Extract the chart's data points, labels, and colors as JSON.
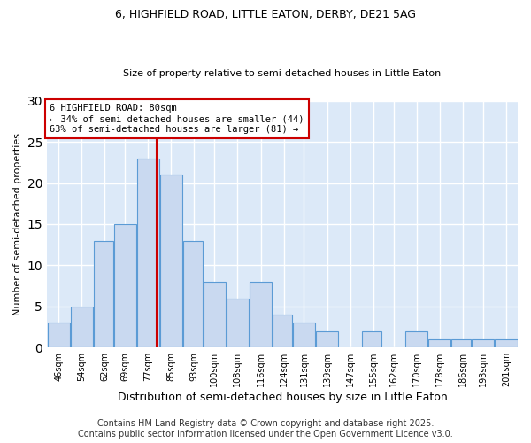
{
  "title1": "6, HIGHFIELD ROAD, LITTLE EATON, DERBY, DE21 5AG",
  "title2": "Size of property relative to semi-detached houses in Little Eaton",
  "xlabel": "Distribution of semi-detached houses by size in Little Eaton",
  "ylabel": "Number of semi-detached properties",
  "bin_edges": [
    42,
    50,
    58,
    65,
    73,
    81,
    89,
    96,
    104,
    112,
    120,
    127,
    135,
    143,
    151,
    158,
    166,
    174,
    182,
    189,
    197,
    205
  ],
  "bar_heights": [
    3,
    5,
    13,
    15,
    23,
    21,
    13,
    8,
    6,
    8,
    4,
    3,
    2,
    0,
    2,
    0,
    2,
    1,
    1,
    1,
    1
  ],
  "tick_labels": [
    "46sqm",
    "54sqm",
    "62sqm",
    "69sqm",
    "77sqm",
    "85sqm",
    "93sqm",
    "100sqm",
    "108sqm",
    "116sqm",
    "124sqm",
    "131sqm",
    "139sqm",
    "147sqm",
    "155sqm",
    "162sqm",
    "170sqm",
    "178sqm",
    "186sqm",
    "193sqm",
    "201sqm"
  ],
  "tick_positions": [
    46,
    54,
    62,
    69,
    77,
    85,
    93,
    100,
    108,
    116,
    124,
    131,
    139,
    147,
    155,
    162,
    170,
    178,
    186,
    193,
    201
  ],
  "property_size": 80,
  "property_label": "6 HIGHFIELD ROAD: 80sqm",
  "pct_smaller": 34,
  "n_smaller": 44,
  "pct_larger": 63,
  "n_larger": 81,
  "bar_color": "#c9d9f0",
  "bar_edge_color": "#5b9bd5",
  "vline_color": "#cc0000",
  "annotation_box_color": "#cc0000",
  "background_color": "#dce9f8",
  "grid_color": "#ffffff",
  "ylim": [
    0,
    30
  ],
  "yticks": [
    0,
    5,
    10,
    15,
    20,
    25,
    30
  ],
  "footer_text": "Contains HM Land Registry data © Crown copyright and database right 2025.\nContains public sector information licensed under the Open Government Licence v3.0.",
  "footer_fontsize": 7,
  "title1_fontsize": 9,
  "title2_fontsize": 8
}
